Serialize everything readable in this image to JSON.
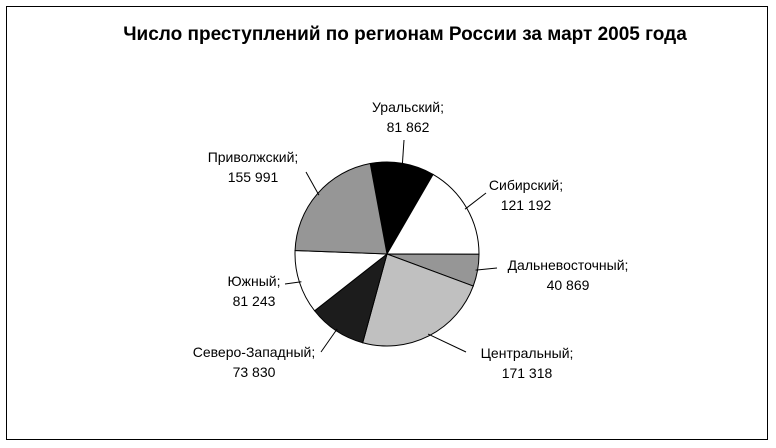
{
  "chart_data": {
    "type": "pie",
    "title": "Число преступлений по регионам России за март 2005 года",
    "slices": [
      {
        "label": "Уральский;",
        "value_text": "81 862",
        "value": 81862,
        "color": "#000000"
      },
      {
        "label": "Сибирский;",
        "value_text": "121 192",
        "value": 121192,
        "color": "#ffffff"
      },
      {
        "label": "Дальневосточный;",
        "value_text": "40 869",
        "value": 40869,
        "color": "#969696"
      },
      {
        "label": "Центральный;",
        "value_text": "171 318",
        "value": 171318,
        "color": "#c0c0c0"
      },
      {
        "label": "Северо-Западный;",
        "value_text": "73 830",
        "value": 73830,
        "color": "#1c1c1c"
      },
      {
        "label": "Южный;",
        "value_text": "81 243",
        "value": 81243,
        "color": "#ffffff"
      },
      {
        "label": "Приволжский;",
        "value_text": "155 991",
        "value": 155991,
        "color": "#969696"
      }
    ]
  }
}
